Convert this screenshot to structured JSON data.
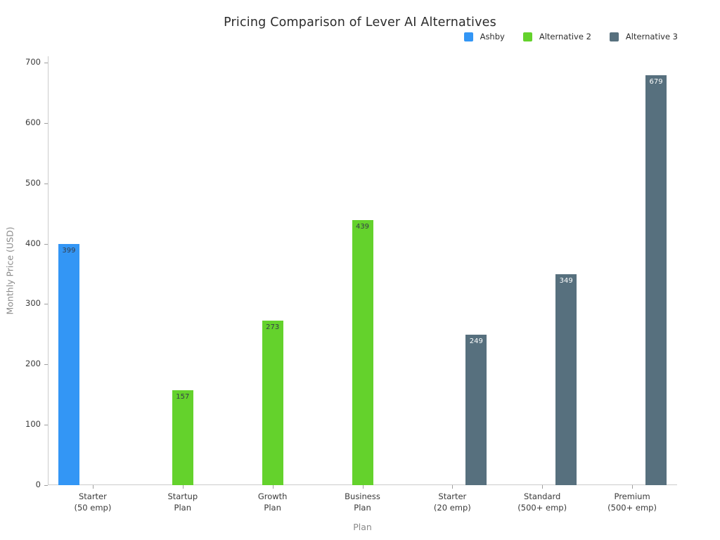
{
  "chart_data": {
    "type": "bar",
    "title": "Pricing Comparison of Lever AI Alternatives",
    "xlabel": "Plan",
    "ylabel": "Monthly Price (USD)",
    "ylim": [
      0,
      700
    ],
    "yticks": [
      0,
      100,
      200,
      300,
      400,
      500,
      600,
      700
    ],
    "grid": false,
    "legend_position": "top-right",
    "background_color": "#ffffff",
    "axis_color": "#cccccc",
    "categories": [
      [
        "Starter",
        "(50 emp)"
      ],
      [
        "Startup",
        "Plan"
      ],
      [
        "Growth",
        "Plan"
      ],
      [
        "Business",
        "Plan"
      ],
      [
        "Starter",
        "(20 emp)"
      ],
      [
        "Standard",
        "(500+ emp)"
      ],
      [
        "Premium",
        "(500+ emp)"
      ]
    ],
    "series": [
      {
        "name": "Ashby",
        "color": "#3396f5",
        "value_label_color": "#363c47",
        "values": [
          399,
          null,
          null,
          null,
          null,
          null,
          null
        ]
      },
      {
        "name": "Alternative 2",
        "color": "#64d22c",
        "value_label_color": "#363c47",
        "values": [
          null,
          157,
          273,
          439,
          null,
          null,
          null
        ]
      },
      {
        "name": "Alternative 3",
        "color": "#57707e",
        "value_label_color": "#ffffff",
        "values": [
          null,
          null,
          null,
          null,
          249,
          349,
          679
        ]
      }
    ]
  }
}
